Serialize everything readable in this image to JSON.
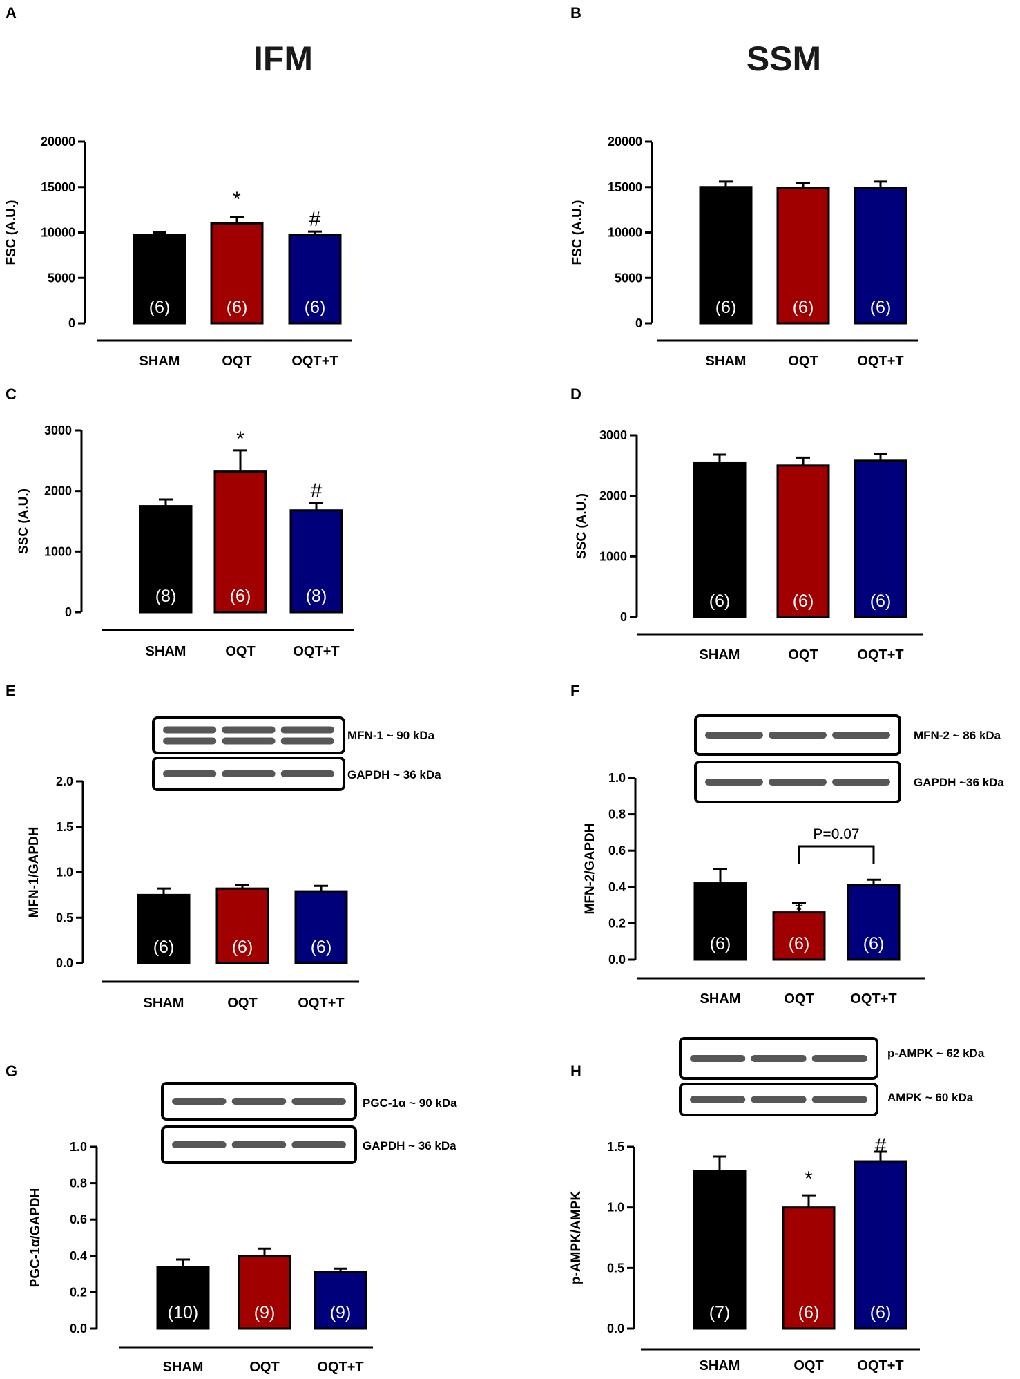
{
  "column_titles": [
    "IFM",
    "SSM"
  ],
  "colors": {
    "SHAM": "#000000",
    "OQT": "#a00000",
    "OQT+T": "#00007a"
  },
  "chart_data": [
    {
      "panel": "A",
      "type": "bar",
      "ylabel": "FSC (A.U.)",
      "ylim": [
        0,
        20000
      ],
      "yticks": [
        0,
        5000,
        10000,
        15000,
        20000
      ],
      "tick_labels": [
        "0",
        "5000",
        "10000",
        "15000",
        "20000"
      ],
      "categories": [
        "SHAM",
        "OQT",
        "OQT+T"
      ],
      "values": [
        9700,
        11000,
        9700
      ],
      "errors": [
        300,
        700,
        400
      ],
      "n_labels": [
        "(6)",
        "(6)",
        "(6)"
      ],
      "sig_marks": [
        "",
        "*",
        "#"
      ],
      "blots": []
    },
    {
      "panel": "B",
      "type": "bar",
      "ylabel": "FSC (A.U.)",
      "ylim": [
        0,
        20000
      ],
      "yticks": [
        0,
        5000,
        10000,
        15000,
        20000
      ],
      "tick_labels": [
        "0",
        "5000",
        "10000",
        "15000",
        "20000"
      ],
      "categories": [
        "SHAM",
        "OQT",
        "OQT+T"
      ],
      "values": [
        15000,
        14900,
        14900
      ],
      "errors": [
        600,
        500,
        700
      ],
      "n_labels": [
        "(6)",
        "(6)",
        "(6)"
      ],
      "sig_marks": [
        "",
        "",
        ""
      ],
      "blots": []
    },
    {
      "panel": "C",
      "type": "bar",
      "ylabel": "SSC (A.U.)",
      "ylim": [
        0,
        3000
      ],
      "yticks": [
        0,
        1000,
        2000,
        3000
      ],
      "tick_labels": [
        "0",
        "1000",
        "2000",
        "3000"
      ],
      "categories": [
        "SHAM",
        "OQT",
        "OQT+T"
      ],
      "values": [
        1750,
        2320,
        1680
      ],
      "errors": [
        110,
        350,
        120
      ],
      "n_labels": [
        "(8)",
        "(6)",
        "(8)"
      ],
      "sig_marks": [
        "",
        "*",
        "#"
      ],
      "blots": []
    },
    {
      "panel": "D",
      "type": "bar",
      "ylabel": "SSC (A.U.)",
      "ylim": [
        0,
        3000
      ],
      "yticks": [
        0,
        1000,
        2000,
        3000
      ],
      "tick_labels": [
        "0",
        "1000",
        "2000",
        "3000"
      ],
      "categories": [
        "SHAM",
        "OQT",
        "OQT+T"
      ],
      "values": [
        2550,
        2500,
        2580
      ],
      "errors": [
        130,
        130,
        110
      ],
      "n_labels": [
        "(6)",
        "(6)",
        "(6)"
      ],
      "sig_marks": [
        "",
        "",
        ""
      ],
      "blots": []
    },
    {
      "panel": "E",
      "type": "bar",
      "ylabel": "MFN-1/GAPDH",
      "ylim": [
        0,
        2.0
      ],
      "yticks": [
        0,
        0.5,
        1.0,
        1.5,
        2.0
      ],
      "tick_labels": [
        "0.0",
        "0.5",
        "1.0",
        "1.5",
        "2.0"
      ],
      "categories": [
        "SHAM",
        "OQT",
        "OQT+T"
      ],
      "values": [
        0.75,
        0.82,
        0.79
      ],
      "errors": [
        0.07,
        0.04,
        0.06
      ],
      "n_labels": [
        "(6)",
        "(6)",
        "(6)"
      ],
      "sig_marks": [
        "",
        "",
        ""
      ],
      "blots": [
        "MFN-1 ~ 90 kDa",
        "GAPDH ~ 36 kDa"
      ]
    },
    {
      "panel": "F",
      "type": "bar",
      "ylabel": "MFN-2/GAPDH",
      "ylim": [
        0,
        1.0
      ],
      "yticks": [
        0,
        0.2,
        0.4,
        0.6,
        0.8,
        1.0
      ],
      "tick_labels": [
        "0.0",
        "0.2",
        "0.4",
        "0.6",
        "0.8",
        "1.0"
      ],
      "categories": [
        "SHAM",
        "OQT",
        "OQT+T"
      ],
      "values": [
        0.42,
        0.26,
        0.41
      ],
      "errors": [
        0.08,
        0.05,
        0.03
      ],
      "n_labels": [
        "(6)",
        "(6)",
        "(6)"
      ],
      "sig_marks": [
        "",
        "*",
        ""
      ],
      "blots": [
        "MFN-2 ~ 86 kDa",
        "GAPDH ~36 kDa"
      ],
      "annotation": "P=0.07"
    },
    {
      "panel": "G",
      "type": "bar",
      "ylabel": "PGC-1α/GAPDH",
      "ylim": [
        0,
        1.0
      ],
      "yticks": [
        0,
        0.2,
        0.4,
        0.6,
        0.8,
        1.0
      ],
      "tick_labels": [
        "0.0",
        "0.2",
        "0.4",
        "0.6",
        "0.8",
        "1.0"
      ],
      "categories": [
        "SHAM",
        "OQT",
        "OQT+T"
      ],
      "values": [
        0.34,
        0.4,
        0.31
      ],
      "errors": [
        0.04,
        0.04,
        0.02
      ],
      "n_labels": [
        "(10)",
        "(9)",
        "(9)"
      ],
      "sig_marks": [
        "",
        "",
        ""
      ],
      "blots": [
        "PGC-1α ~ 90 kDa",
        "GAPDH ~ 36 kDa"
      ]
    },
    {
      "panel": "H",
      "type": "bar",
      "ylabel": "p-AMPK/AMPK",
      "ylim": [
        0,
        1.5
      ],
      "yticks": [
        0,
        0.5,
        1.0,
        1.5
      ],
      "tick_labels": [
        "0.0",
        "0.5",
        "1.0",
        "1.5"
      ],
      "categories": [
        "SHAM",
        "OQT",
        "OQT+T"
      ],
      "values": [
        1.3,
        1.0,
        1.38
      ],
      "errors": [
        0.12,
        0.1,
        0.08
      ],
      "n_labels": [
        "(7)",
        "(6)",
        "(6)"
      ],
      "sig_marks": [
        "",
        "*",
        "#"
      ],
      "blots": [
        "p-AMPK ~ 62 kDa",
        "AMPK ~ 60 kDa"
      ]
    }
  ]
}
